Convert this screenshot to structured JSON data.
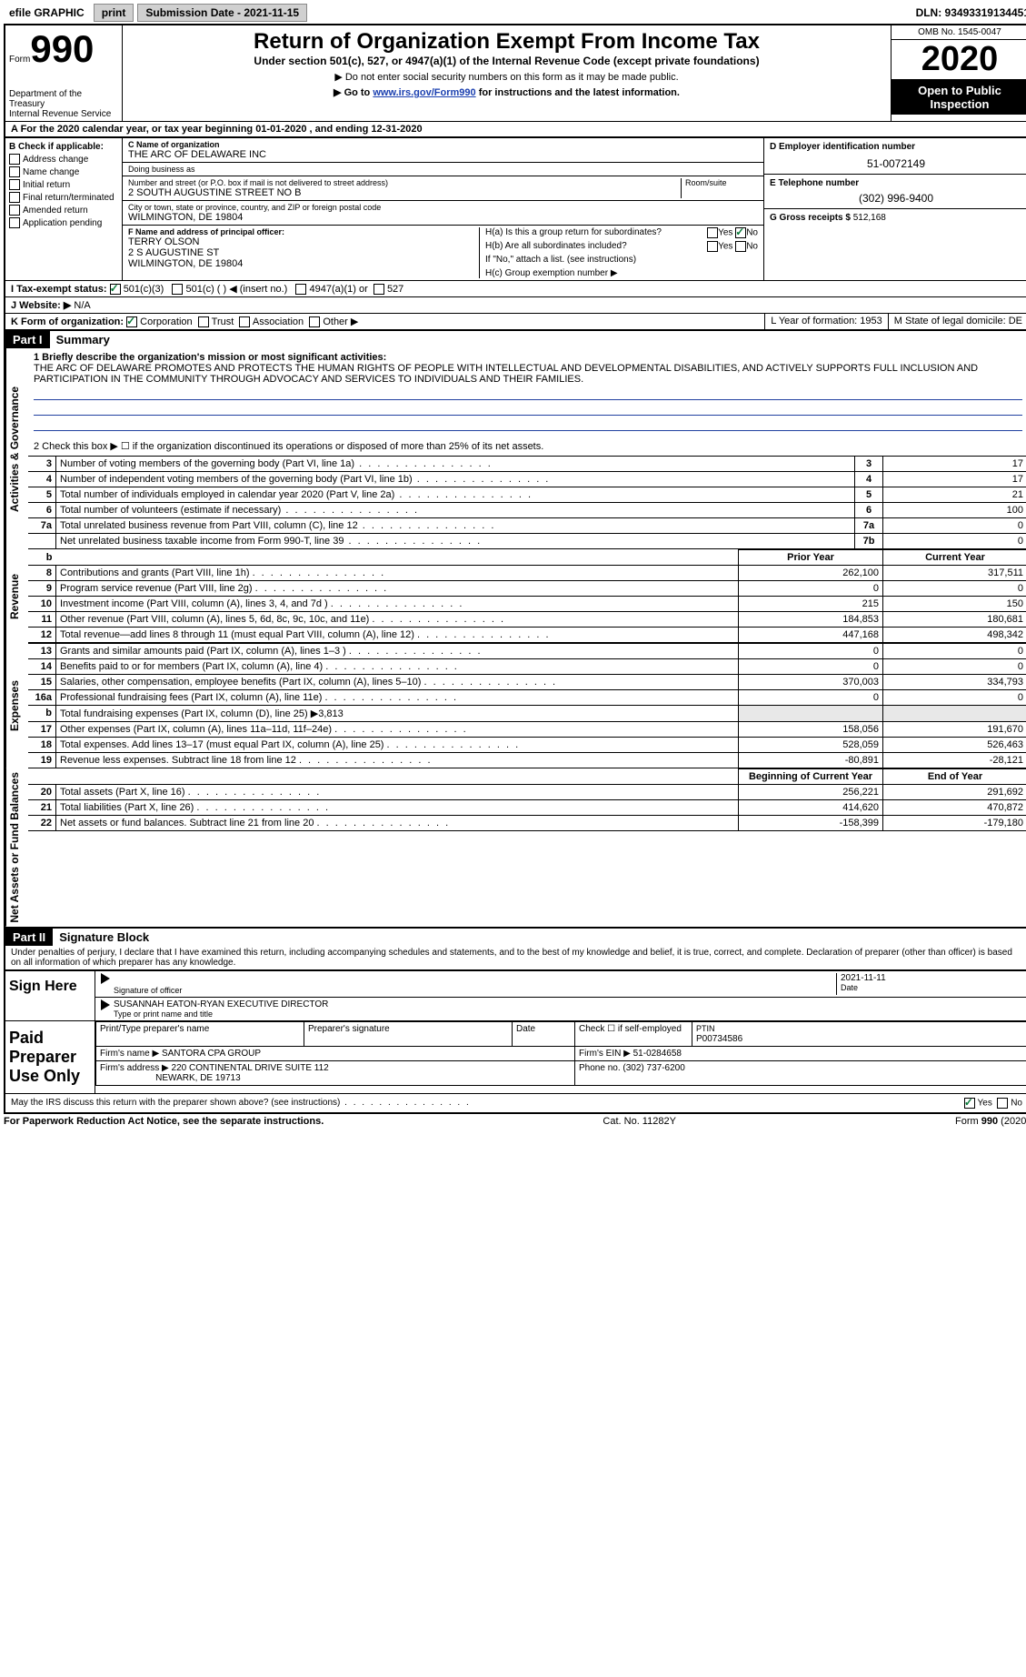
{
  "topbar": {
    "efile": "efile GRAPHIC",
    "print": "print",
    "submission_label": "Submission Date - 2021-11-15",
    "dln_label": "DLN: 93493319134451"
  },
  "header": {
    "form_prefix": "Form",
    "form_number": "990",
    "dept1": "Department of the Treasury",
    "dept2": "Internal Revenue Service",
    "title": "Return of Organization Exempt From Income Tax",
    "subtitle": "Under section 501(c), 527, or 4947(a)(1) of the Internal Revenue Code (except private foundations)",
    "note1": "▶ Do not enter social security numbers on this form as it may be made public.",
    "note2_pre": "▶ Go to ",
    "note2_link": "www.irs.gov/Form990",
    "note2_post": " for instructions and the latest information.",
    "omb": "OMB No. 1545-0047",
    "year": "2020",
    "public": "Open to Public Inspection"
  },
  "period": {
    "line_a": "A For the 2020 calendar year, or tax year beginning 01-01-2020   , and ending 12-31-2020"
  },
  "box_b": {
    "heading": "B Check if applicable:",
    "items": [
      {
        "label": "Address change",
        "checked": false
      },
      {
        "label": "Name change",
        "checked": false
      },
      {
        "label": "Initial return",
        "checked": false
      },
      {
        "label": "Final return/terminated",
        "checked": false
      },
      {
        "label": "Amended return",
        "checked": false
      },
      {
        "label": "Application pending",
        "checked": false
      }
    ]
  },
  "box_c": {
    "name_label": "C Name of organization",
    "name": "THE ARC OF DELAWARE INC",
    "dba_label": "Doing business as",
    "dba": "",
    "street_label": "Number and street (or P.O. box if mail is not delivered to street address)",
    "room_label": "Room/suite",
    "street": "2 SOUTH AUGUSTINE STREET NO B",
    "city_label": "City or town, state or province, country, and ZIP or foreign postal code",
    "city": "WILMINGTON, DE  19804"
  },
  "box_d": {
    "label": "D Employer identification number",
    "value": "51-0072149"
  },
  "box_e": {
    "label": "E Telephone number",
    "value": "(302) 996-9400"
  },
  "box_g": {
    "label": "G Gross receipts $",
    "value": "512,168"
  },
  "box_f": {
    "label": "F Name and address of principal officer:",
    "line1": "TERRY OLSON",
    "line2": "2 S AUGUSTINE ST",
    "line3": "WILMINGTON, DE  19804"
  },
  "box_h": {
    "ha": "H(a) Is this a group return for subordinates?",
    "ha_yes": "Yes",
    "ha_no": "No",
    "ha_checked": "No",
    "hb": "H(b) Are all subordinates included?",
    "hb_yes": "Yes",
    "hb_no": "No",
    "hb_note": "If \"No,\" attach a list. (see instructions)",
    "hc": "H(c) Group exemption number ▶"
  },
  "box_i": {
    "label": "I   Tax-exempt status:",
    "opt1": "501(c)(3)",
    "opt1_checked": true,
    "opt2": "501(c) (  ) ◀ (insert no.)",
    "opt3": "4947(a)(1) or",
    "opt4": "527"
  },
  "box_j": {
    "label": "J   Website: ▶",
    "value": "N/A"
  },
  "box_k": {
    "label": "K Form of organization:",
    "opt1": "Corporation",
    "opt1_checked": true,
    "opt2": "Trust",
    "opt3": "Association",
    "opt4": "Other ▶"
  },
  "box_l": {
    "label": "L Year of formation: 1953"
  },
  "box_m": {
    "label": "M State of legal domicile: DE"
  },
  "part1": {
    "header": "Part I",
    "title": "Summary",
    "side_gov": "Activities & Governance",
    "side_rev": "Revenue",
    "side_exp": "Expenses",
    "side_net": "Net Assets or Fund Balances",
    "line1_label": "1  Briefly describe the organization's mission or most significant activities:",
    "mission": "THE ARC OF DELAWARE PROMOTES AND PROTECTS THE HUMAN RIGHTS OF PEOPLE WITH INTELLECTUAL AND DEVELOPMENTAL DISABILITIES, AND ACTIVELY SUPPORTS FULL INCLUSION AND PARTICIPATION IN THE COMMUNITY THROUGH ADVOCACY AND SERVICES TO INDIVIDUALS AND THEIR FAMILIES.",
    "line2": "2   Check this box ▶ ☐ if the organization discontinued its operations or disposed of more than 25% of its net assets.",
    "gov_rows": [
      {
        "n": "3",
        "desc": "Number of voting members of the governing body (Part VI, line 1a)",
        "box": "3",
        "val": "17"
      },
      {
        "n": "4",
        "desc": "Number of independent voting members of the governing body (Part VI, line 1b)",
        "box": "4",
        "val": "17"
      },
      {
        "n": "5",
        "desc": "Total number of individuals employed in calendar year 2020 (Part V, line 2a)",
        "box": "5",
        "val": "21"
      },
      {
        "n": "6",
        "desc": "Total number of volunteers (estimate if necessary)",
        "box": "6",
        "val": "100"
      },
      {
        "n": "7a",
        "desc": "Total unrelated business revenue from Part VIII, column (C), line 12",
        "box": "7a",
        "val": "0"
      },
      {
        "n": "",
        "desc": "Net unrelated business taxable income from Form 990-T, line 39",
        "box": "7b",
        "val": "0"
      }
    ],
    "col_head_prior": "Prior Year",
    "col_head_curr": "Current Year",
    "rev_rows": [
      {
        "n": "8",
        "desc": "Contributions and grants (Part VIII, line 1h)",
        "prior": "262,100",
        "curr": "317,511"
      },
      {
        "n": "9",
        "desc": "Program service revenue (Part VIII, line 2g)",
        "prior": "0",
        "curr": "0"
      },
      {
        "n": "10",
        "desc": "Investment income (Part VIII, column (A), lines 3, 4, and 7d )",
        "prior": "215",
        "curr": "150"
      },
      {
        "n": "11",
        "desc": "Other revenue (Part VIII, column (A), lines 5, 6d, 8c, 9c, 10c, and 11e)",
        "prior": "184,853",
        "curr": "180,681"
      },
      {
        "n": "12",
        "desc": "Total revenue—add lines 8 through 11 (must equal Part VIII, column (A), line 12)",
        "prior": "447,168",
        "curr": "498,342"
      }
    ],
    "exp_rows": [
      {
        "n": "13",
        "desc": "Grants and similar amounts paid (Part IX, column (A), lines 1–3 )",
        "prior": "0",
        "curr": "0"
      },
      {
        "n": "14",
        "desc": "Benefits paid to or for members (Part IX, column (A), line 4)",
        "prior": "0",
        "curr": "0"
      },
      {
        "n": "15",
        "desc": "Salaries, other compensation, employee benefits (Part IX, column (A), lines 5–10)",
        "prior": "370,003",
        "curr": "334,793"
      },
      {
        "n": "16a",
        "desc": "Professional fundraising fees (Part IX, column (A), line 11e)",
        "prior": "0",
        "curr": "0"
      },
      {
        "n": "b",
        "desc": "Total fundraising expenses (Part IX, column (D), line 25) ▶3,813",
        "prior": "",
        "curr": "",
        "shade": true
      },
      {
        "n": "17",
        "desc": "Other expenses (Part IX, column (A), lines 11a–11d, 11f–24e)",
        "prior": "158,056",
        "curr": "191,670"
      },
      {
        "n": "18",
        "desc": "Total expenses. Add lines 13–17 (must equal Part IX, column (A), line 25)",
        "prior": "528,059",
        "curr": "526,463"
      },
      {
        "n": "19",
        "desc": "Revenue less expenses. Subtract line 18 from line 12",
        "prior": "-80,891",
        "curr": "-28,121"
      }
    ],
    "col_head_begin": "Beginning of Current Year",
    "col_head_end": "End of Year",
    "net_rows": [
      {
        "n": "20",
        "desc": "Total assets (Part X, line 16)",
        "prior": "256,221",
        "curr": "291,692"
      },
      {
        "n": "21",
        "desc": "Total liabilities (Part X, line 26)",
        "prior": "414,620",
        "curr": "470,872"
      },
      {
        "n": "22",
        "desc": "Net assets or fund balances. Subtract line 21 from line 20",
        "prior": "-158,399",
        "curr": "-179,180"
      }
    ]
  },
  "part2": {
    "header": "Part II",
    "title": "Signature Block",
    "penalties": "Under penalties of perjury, I declare that I have examined this return, including accompanying schedules and statements, and to the best of my knowledge and belief, it is true, correct, and complete. Declaration of preparer (other than officer) is based on all information of which preparer has any knowledge.",
    "sign_here": "Sign Here",
    "sig_officer": "Signature of officer",
    "sig_date": "2021-11-11",
    "date_label": "Date",
    "officer_name": "SUSANNAH EATON-RYAN  EXECUTIVE DIRECTOR",
    "type_label": "Type or print name and title",
    "paid_preparer": "Paid Preparer Use Only",
    "prep_name_label": "Print/Type preparer's name",
    "prep_sig_label": "Preparer's signature",
    "prep_date_label": "Date",
    "prep_self_label": "Check ☐ if self-employed",
    "ptin_label": "PTIN",
    "ptin": "P00734586",
    "firm_name_label": "Firm's name    ▶",
    "firm_name": "SANTORA CPA GROUP",
    "firm_ein_label": "Firm's EIN ▶",
    "firm_ein": "51-0284658",
    "firm_addr_label": "Firm's address ▶",
    "firm_addr1": "220 CONTINENTAL DRIVE SUITE 112",
    "firm_addr2": "NEWARK, DE  19713",
    "phone_label": "Phone no.",
    "phone": "(302) 737-6200",
    "discuss": "May the IRS discuss this return with the preparer shown above? (see instructions)",
    "discuss_yes": "Yes",
    "discuss_no": "No",
    "discuss_checked": "Yes"
  },
  "footer": {
    "left": "For Paperwork Reduction Act Notice, see the separate instructions.",
    "mid": "Cat. No. 11282Y",
    "right": "Form 990 (2020)"
  }
}
